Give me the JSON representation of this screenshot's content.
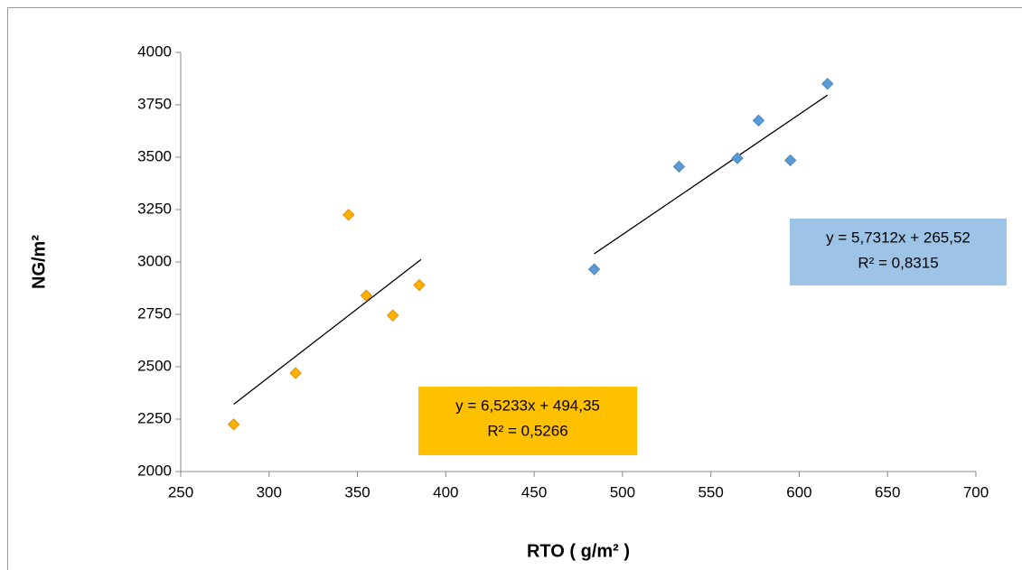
{
  "chart_data": {
    "type": "scatter",
    "x_label": "RTO ( g/m² )",
    "y_label": "NG/m²",
    "xlim": [
      250,
      700
    ],
    "xticks": [
      250,
      300,
      350,
      400,
      450,
      500,
      550,
      600,
      650,
      700
    ],
    "ylim": [
      2000,
      4000
    ],
    "yticks": [
      2000,
      2250,
      2500,
      2750,
      3000,
      3250,
      3500,
      3750,
      4000
    ],
    "series": [
      {
        "color": "#ffb000",
        "x": [
          280,
          315,
          345,
          355,
          370,
          385
        ],
        "values": [
          2225,
          2470,
          3225,
          2840,
          2745,
          2890
        ],
        "trendline": {
          "x": [
            280,
            386
          ],
          "y": [
            2321,
            3012
          ]
        },
        "annotation": {
          "lines": [
            "y = 6,5233x + 494,35",
            "R² = 0,5266"
          ],
          "color": "#ffc000"
        }
      },
      {
        "color": "#5b9bd5",
        "x": [
          484,
          532,
          565,
          577,
          595,
          616
        ],
        "values": [
          2965,
          3455,
          3495,
          3675,
          3485,
          3850
        ],
        "trendline": {
          "x": [
            484,
            616
          ],
          "y": [
            3039,
            3796
          ]
        },
        "annotation": {
          "lines": [
            "y = 5,7312x + 265,52",
            "R² = 0,8315"
          ],
          "color": "#9dc3e6"
        }
      }
    ]
  }
}
